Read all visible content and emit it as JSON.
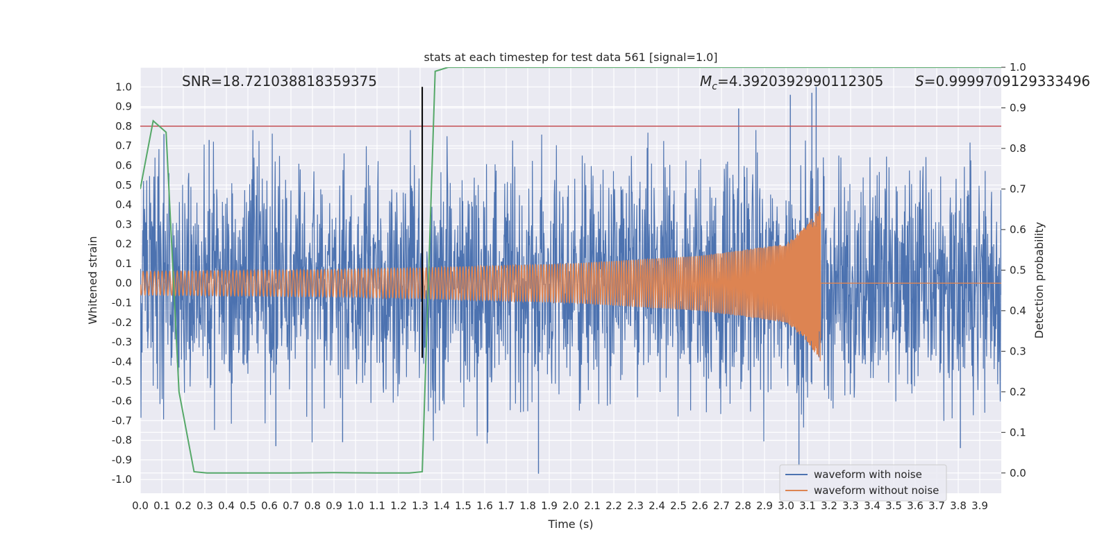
{
  "chart_data": {
    "type": "line",
    "title": "stats at each timestep for test data 561 [signal=1.0]",
    "xlabel": "Time (s)",
    "ylabel": "Whitened strain",
    "ylabel_right": "Detection probability",
    "xlim": [
      0.0,
      4.0
    ],
    "ylim": [
      -1.07,
      1.1
    ],
    "ylim_right": [
      -0.05,
      1.0
    ],
    "x_ticks": [
      "0.0",
      "0.1",
      "0.2",
      "0.3",
      "0.4",
      "0.5",
      "0.6",
      "0.7",
      "0.8",
      "0.9",
      "1.0",
      "1.1",
      "1.2",
      "1.3",
      "1.4",
      "1.5",
      "1.6",
      "1.7",
      "1.8",
      "1.9",
      "2.0",
      "2.1",
      "2.2",
      "2.3",
      "2.4",
      "2.5",
      "2.6",
      "2.7",
      "2.8",
      "2.9",
      "3.0",
      "3.1",
      "3.2",
      "3.3",
      "3.4",
      "3.5",
      "3.6",
      "3.7",
      "3.8",
      "3.9"
    ],
    "y_ticks": [
      "1.0",
      "0.9",
      "0.8",
      "0.7",
      "0.6",
      "0.5",
      "0.4",
      "0.3",
      "0.2",
      "0.1",
      "0.0",
      "-0.1",
      "-0.2",
      "-0.3",
      "-0.4",
      "-0.5",
      "-0.6",
      "-0.7",
      "-0.8",
      "-0.9",
      "-1.0"
    ],
    "y_ticks_right": [
      "1.0",
      "0.9",
      "0.8",
      "0.7",
      "0.6",
      "0.5",
      "0.4",
      "0.3",
      "0.2",
      "0.1",
      "0.0"
    ],
    "grid": true,
    "legend_position": "bottom-right",
    "annotations": {
      "snr": "SNR=18.721038818359375",
      "mc": "=4.3920392990112305",
      "mc_symbol": "M",
      "mc_subscript": "c",
      "s_symbol": "S",
      "s": "=0.9999709129333496"
    },
    "threshold_line": {
      "y": 0.8,
      "color": "#c44e52"
    },
    "detection_marker": {
      "x": 1.31,
      "color": "#000000"
    },
    "series": [
      {
        "name": "waveform with noise",
        "color": "#4c72b0",
        "axis": "left",
        "noise_amplitude": 0.4,
        "extreme_peaks": [
          {
            "x": 0.11,
            "y": 0.76
          },
          {
            "x": 0.32,
            "y": 0.73
          },
          {
            "x": 0.63,
            "y": -0.83
          },
          {
            "x": 0.94,
            "y": -0.81
          },
          {
            "x": 1.85,
            "y": -0.97
          },
          {
            "x": 2.78,
            "y": 0.89
          },
          {
            "x": 3.02,
            "y": 0.96
          },
          {
            "x": 3.06,
            "y": -0.93
          },
          {
            "x": 3.12,
            "y": 0.97
          },
          {
            "x": 3.14,
            "y": 1.0
          },
          {
            "x": 3.81,
            "y": -0.84
          }
        ]
      },
      {
        "name": "waveform without noise",
        "color": "#dd8452",
        "axis": "left",
        "envelope": [
          {
            "x": 0.0,
            "y": 0.06
          },
          {
            "x": 1.0,
            "y": 0.07
          },
          {
            "x": 2.0,
            "y": 0.1
          },
          {
            "x": 2.6,
            "y": 0.14
          },
          {
            "x": 3.0,
            "y": 0.2
          },
          {
            "x": 3.1,
            "y": 0.3
          },
          {
            "x": 3.16,
            "y": 0.4
          }
        ],
        "merger_time": 3.16
      },
      {
        "name": "detection probability",
        "color": "#55a868",
        "axis": "right",
        "x": [
          0.0,
          0.06,
          0.12,
          0.18,
          0.25,
          0.31,
          0.5,
          0.7,
          0.9,
          1.1,
          1.25,
          1.31,
          1.37,
          1.43,
          2.0,
          3.0,
          4.0
        ],
        "y": [
          0.7,
          0.868,
          0.84,
          0.2,
          0.003,
          0.0,
          0.0,
          0.0,
          0.001,
          0.0,
          0.0,
          0.003,
          0.99,
          1.0,
          1.0,
          1.0,
          1.0
        ]
      }
    ]
  }
}
